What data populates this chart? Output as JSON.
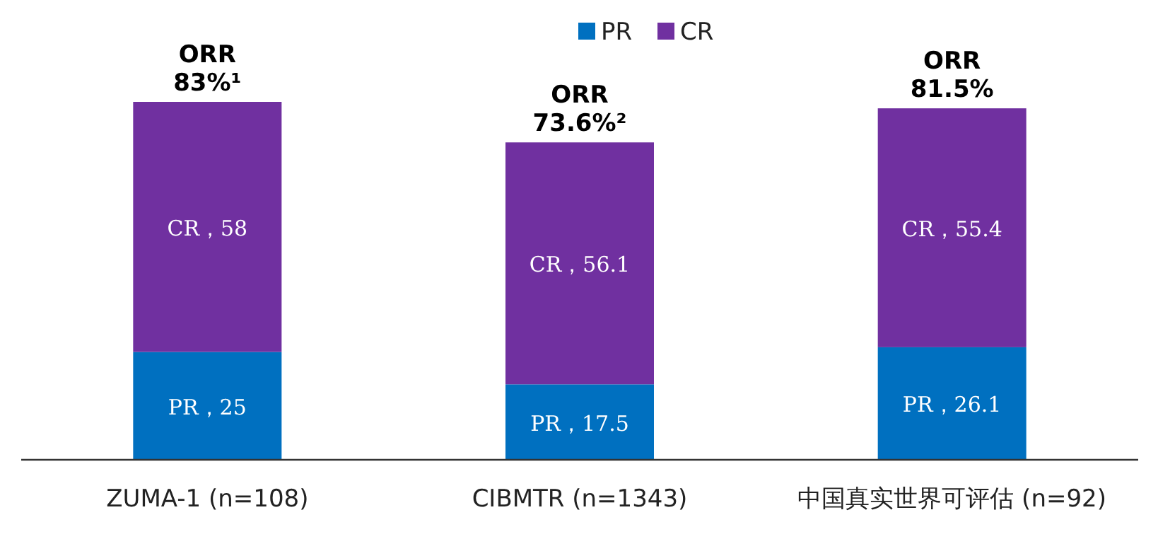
{
  "chart_data": {
    "type": "bar",
    "stacked": true,
    "legend": "top",
    "categories": [
      "ZUMA-1 (n=108)",
      "CIBMTR (n=1343)",
      "中国真实世界可评估 (n=92)"
    ],
    "series": [
      {
        "name": "PR",
        "color": "#0070c0",
        "values": [
          25,
          17.5,
          26.1
        ],
        "value_labels": [
          "PR，25",
          "PR，17.5",
          "PR，26.1"
        ]
      },
      {
        "name": "CR",
        "color": "#7030a0",
        "values": [
          58,
          56.1,
          55.4
        ],
        "value_labels": [
          "CR，58",
          "CR，56.1",
          "CR，55.4"
        ]
      }
    ],
    "totals": [
      "ORR 83%¹",
      "ORR 73.6%²",
      "ORR 81.5%"
    ]
  }
}
